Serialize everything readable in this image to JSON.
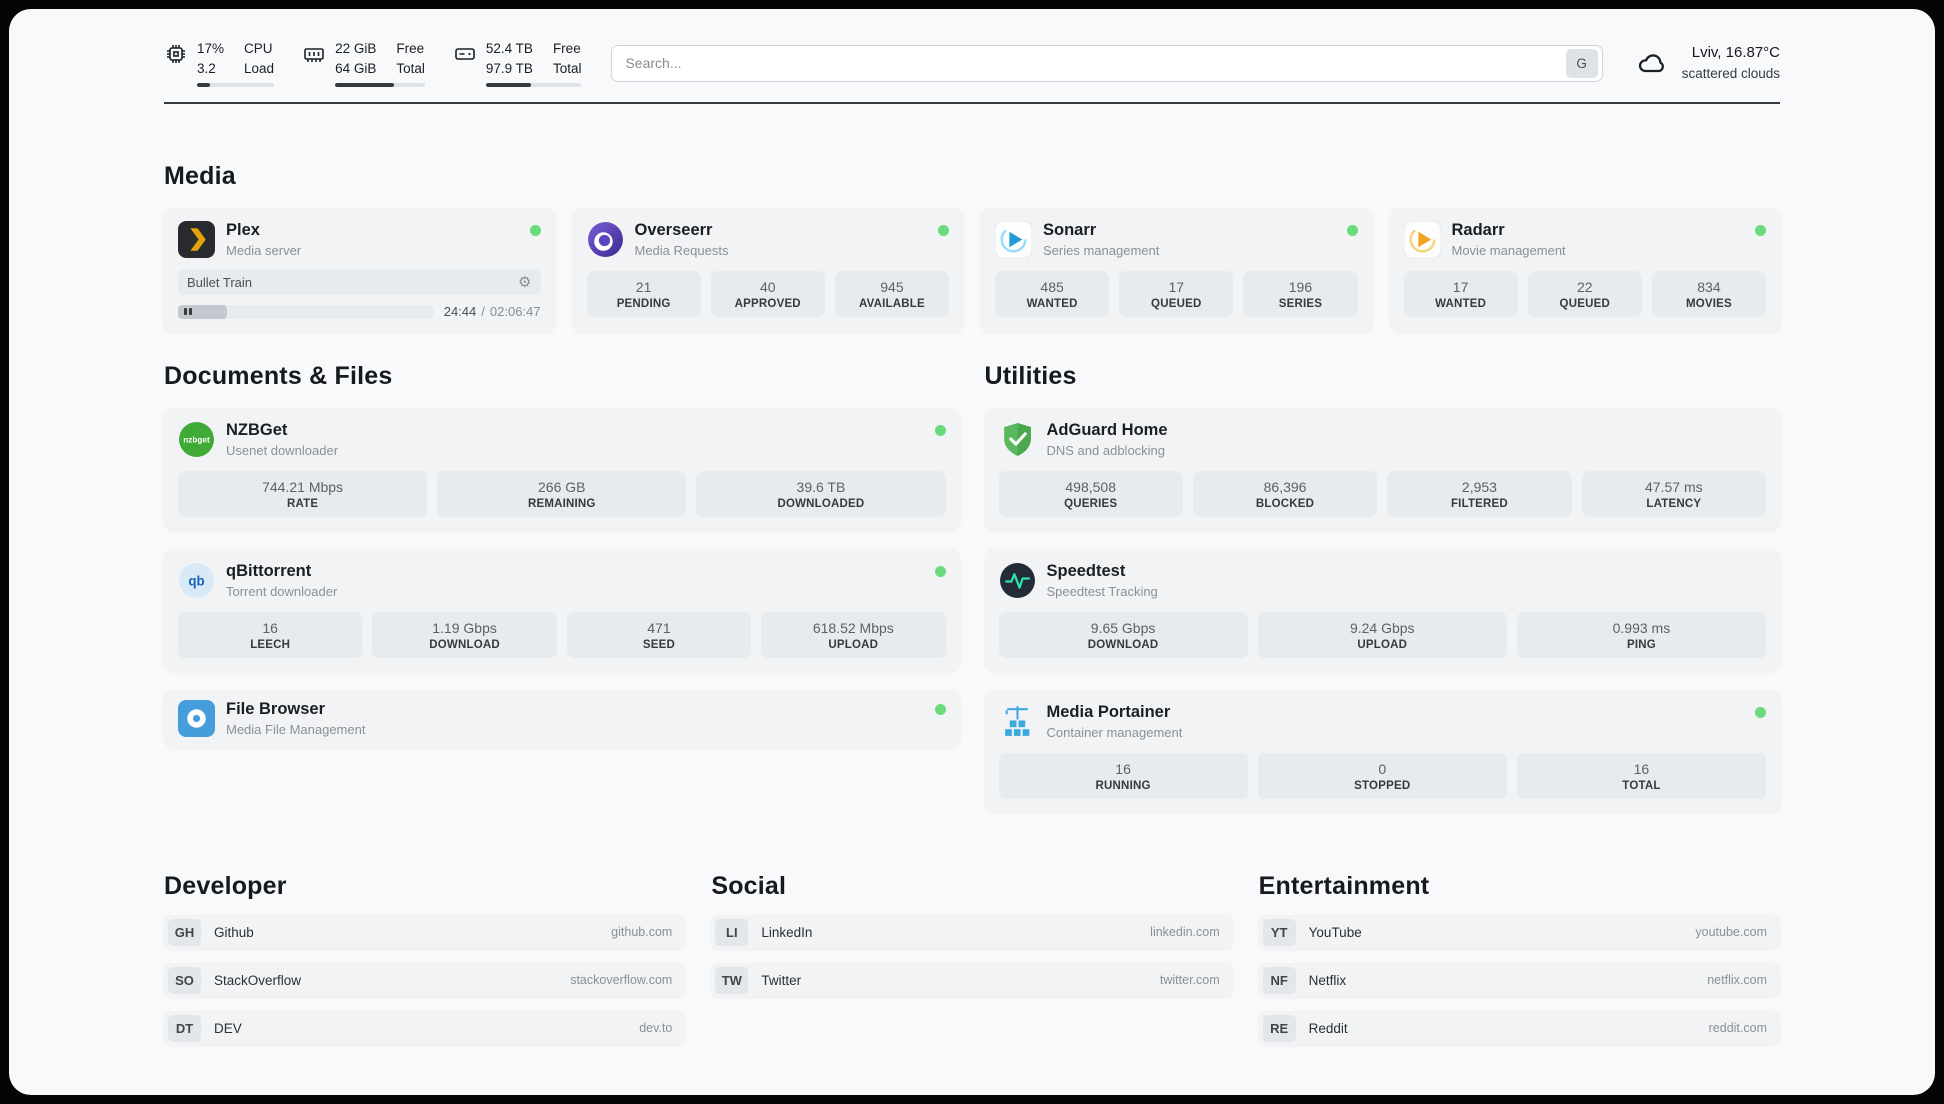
{
  "header": {
    "metrics": [
      {
        "value_top": "17%",
        "value_bottom": "3.2",
        "label_top": "CPU",
        "label_bottom": "Load",
        "progress": 17
      },
      {
        "value_top": "22 GiB",
        "value_bottom": "64 GiB",
        "label_top": "Free",
        "label_bottom": "Total",
        "progress": 66
      },
      {
        "value_top": "52.4 TB",
        "value_bottom": "97.9 TB",
        "label_top": "Free",
        "label_bottom": "Total",
        "progress": 47
      }
    ],
    "search": {
      "placeholder": "Search...",
      "button": "G"
    },
    "weather": {
      "location": "Lviv, 16.87°C",
      "condition": "scattered clouds"
    }
  },
  "sections": {
    "media": "Media",
    "documents": "Documents & Files",
    "utilities": "Utilities",
    "developer": "Developer",
    "social": "Social",
    "entertainment": "Entertainment"
  },
  "icons": {
    "gear": "⚙"
  },
  "apps": {
    "plex": {
      "name": "Plex",
      "subtitle": "Media server",
      "track": "Bullet Train",
      "time_current": "24:44",
      "time_separator": "/",
      "time_total": "02:06:47",
      "progress": 19
    },
    "overseerr": {
      "name": "Overseerr",
      "subtitle": "Media Requests",
      "stats": [
        {
          "value": "21",
          "label": "PENDING"
        },
        {
          "value": "40",
          "label": "APPROVED"
        },
        {
          "value": "945",
          "label": "AVAILABLE"
        }
      ]
    },
    "sonarr": {
      "name": "Sonarr",
      "subtitle": "Series management",
      "stats": [
        {
          "value": "485",
          "label": "WANTED"
        },
        {
          "value": "17",
          "label": "QUEUED"
        },
        {
          "value": "196",
          "label": "SERIES"
        }
      ]
    },
    "radarr": {
      "name": "Radarr",
      "subtitle": "Movie management",
      "stats": [
        {
          "value": "17",
          "label": "WANTED"
        },
        {
          "value": "22",
          "label": "QUEUED"
        },
        {
          "value": "834",
          "label": "MOVIES"
        }
      ]
    },
    "nzbget": {
      "name": "NZBGet",
      "subtitle": "Usenet downloader",
      "stats": [
        {
          "value": "744.21 Mbps",
          "label": "RATE"
        },
        {
          "value": "266 GB",
          "label": "REMAINING"
        },
        {
          "value": "39.6 TB",
          "label": "DOWNLOADED"
        }
      ]
    },
    "qbittorrent": {
      "name": "qBittorrent",
      "subtitle": "Torrent downloader",
      "stats": [
        {
          "value": "16",
          "label": "LEECH"
        },
        {
          "value": "1.19 Gbps",
          "label": "DOWNLOAD"
        },
        {
          "value": "471",
          "label": "SEED"
        },
        {
          "value": "618.52 Mbps",
          "label": "UPLOAD"
        }
      ]
    },
    "filebrowser": {
      "name": "File Browser",
      "subtitle": "Media File Management"
    },
    "adguard": {
      "name": "AdGuard Home",
      "subtitle": "DNS and adblocking",
      "stats": [
        {
          "value": "498,508",
          "label": "QUERIES"
        },
        {
          "value": "86,396",
          "label": "BLOCKED"
        },
        {
          "value": "2,953",
          "label": "FILTERED"
        },
        {
          "value": "47.57 ms",
          "label": "LATENCY"
        }
      ]
    },
    "speedtest": {
      "name": "Speedtest",
      "subtitle": "Speedtest Tracking",
      "stats": [
        {
          "value": "9.65 Gbps",
          "label": "DOWNLOAD"
        },
        {
          "value": "9.24 Gbps",
          "label": "UPLOAD"
        },
        {
          "value": "0.993 ms",
          "label": "PING"
        }
      ]
    },
    "portainer": {
      "name": "Media Portainer",
      "subtitle": "Container management",
      "stats": [
        {
          "value": "16",
          "label": "RUNNING"
        },
        {
          "value": "0",
          "label": "STOPPED"
        },
        {
          "value": "16",
          "label": "TOTAL"
        }
      ]
    }
  },
  "links": {
    "developer": [
      {
        "abbr": "GH",
        "name": "Github",
        "url": "github.com"
      },
      {
        "abbr": "SO",
        "name": "StackOverflow",
        "url": "stackoverflow.com"
      },
      {
        "abbr": "DT",
        "name": "DEV",
        "url": "dev.to"
      }
    ],
    "social": [
      {
        "abbr": "LI",
        "name": "LinkedIn",
        "url": "linkedin.com"
      },
      {
        "abbr": "TW",
        "name": "Twitter",
        "url": "twitter.com"
      }
    ],
    "entertainment": [
      {
        "abbr": "YT",
        "name": "YouTube",
        "url": "youtube.com"
      },
      {
        "abbr": "NF",
        "name": "Netflix",
        "url": "netflix.com"
      },
      {
        "abbr": "RE",
        "name": "Reddit",
        "url": "reddit.com"
      }
    ]
  }
}
